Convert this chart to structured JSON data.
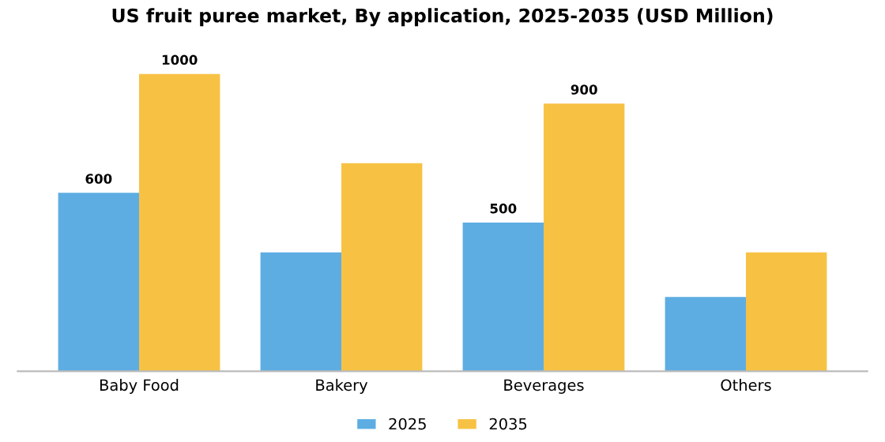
{
  "chart_data": {
    "type": "bar",
    "title": "US fruit puree market, By application, 2025-2035 (USD Million)",
    "categories": [
      "Baby Food",
      "Bakery",
      "Beverages",
      "Others"
    ],
    "series": [
      {
        "name": "2025",
        "color": "#5dade2",
        "values": [
          600,
          400,
          500,
          250
        ],
        "value_labels": [
          "600",
          null,
          "500",
          null
        ]
      },
      {
        "name": "2035",
        "color": "#f7c244",
        "values": [
          1000,
          700,
          900,
          400
        ],
        "value_labels": [
          "1000",
          null,
          "900",
          null
        ]
      }
    ],
    "legend": "bottom",
    "tick_labels": "x"
  }
}
